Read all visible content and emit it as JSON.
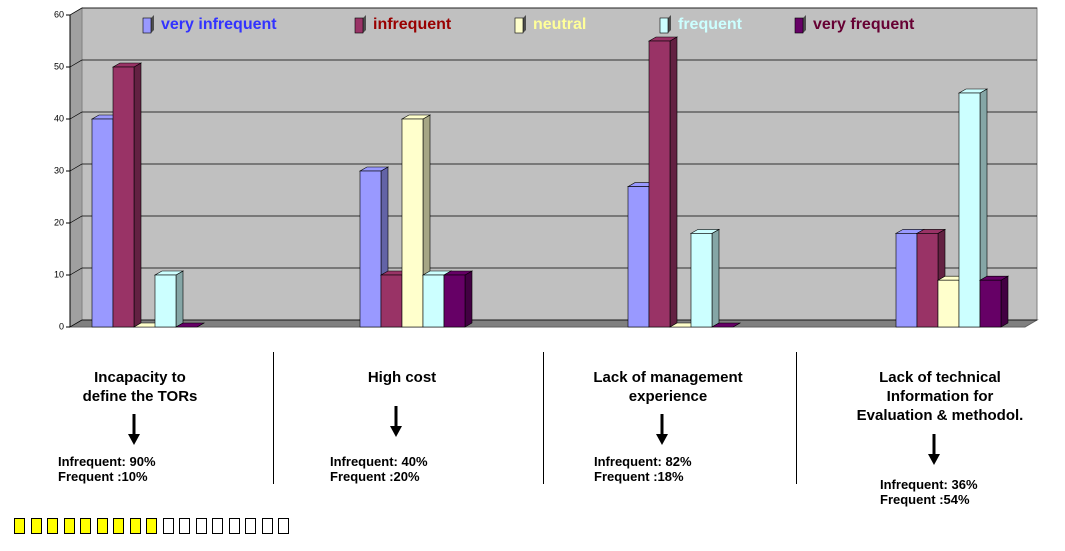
{
  "chart_data": {
    "type": "bar3d",
    "categories": [
      "Incapacity to\ndefine the TORs",
      "High cost",
      "Lack of management\nexperience",
      "Lack  of technical\nInformation for\nEvaluation & methodol."
    ],
    "series": [
      {
        "name": "very infrequent",
        "color": "#9999ff",
        "label_color": "#3333ff",
        "values": [
          40,
          30,
          27,
          18
        ]
      },
      {
        "name": "infrequent",
        "color": "#993366",
        "label_color": "#990000",
        "values": [
          50,
          10,
          55,
          18
        ]
      },
      {
        "name": "neutral",
        "color": "#ffffcc",
        "label_color": "#ffff99",
        "values": [
          0,
          40,
          0,
          9
        ]
      },
      {
        "name": "frequent",
        "color": "#ccffff",
        "label_color": "#ccffff",
        "values": [
          10,
          10,
          18,
          45
        ]
      },
      {
        "name": "very frequent",
        "color": "#660066",
        "label_color": "#660033",
        "values": [
          0,
          10,
          0,
          9
        ]
      }
    ],
    "annotations": [
      [
        "Infrequent: 90%",
        "Frequent :10%"
      ],
      [
        "Infrequent: 40%",
        "Frequent :20%"
      ],
      [
        "Infrequent: 82%",
        "Frequent :18%"
      ],
      [
        "Infrequent: 36%",
        "Frequent :54%"
      ]
    ],
    "ylim": [
      0,
      60
    ],
    "yticks": [
      0,
      10,
      20,
      30,
      40,
      50,
      60
    ],
    "grid": true
  }
}
